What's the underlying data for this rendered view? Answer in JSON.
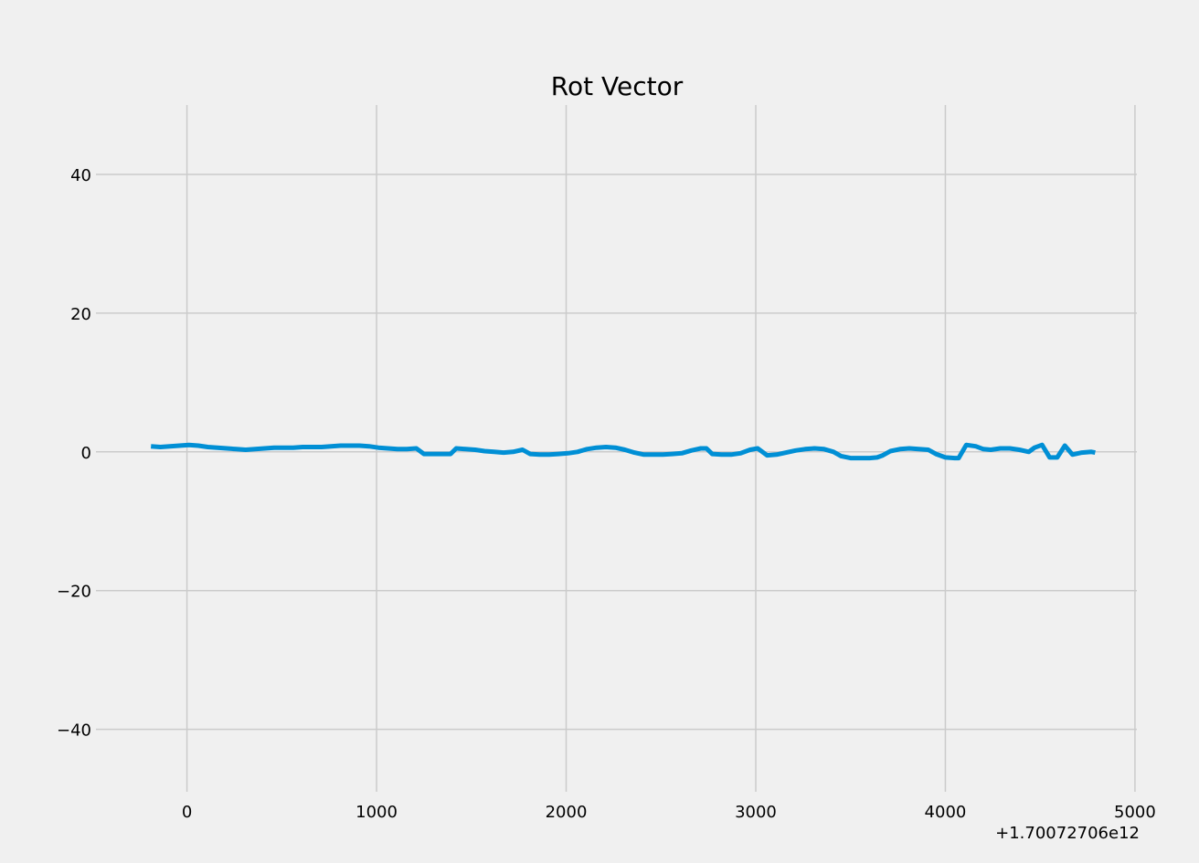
{
  "chart_data": {
    "type": "line",
    "title": "Rot Vector",
    "xlabel": "",
    "ylabel": "",
    "x_offset_label": "+1.70072706e12",
    "xlim": [
      -480,
      5010
    ],
    "ylim": [
      -49,
      50
    ],
    "x_ticks": [
      0,
      1000,
      2000,
      3000,
      4000,
      5000
    ],
    "x_tick_labels": [
      "0",
      "1000",
      "2000",
      "3000",
      "4000",
      "5000"
    ],
    "y_ticks": [
      -40,
      -20,
      0,
      20,
      40
    ],
    "y_tick_labels": [
      "−40",
      "−20",
      "0",
      "20",
      "40"
    ],
    "grid": true,
    "colors": {
      "background": "#f0f0f0",
      "grid": "#cbcbcb",
      "line": "#008fd5"
    },
    "series": [
      {
        "x": [
          -190,
          -140,
          -90,
          -40,
          10,
          60,
          110,
          160,
          210,
          260,
          310,
          360,
          410,
          460,
          510,
          560,
          610,
          660,
          710,
          760,
          810,
          860,
          910,
          960,
          1010,
          1060,
          1110,
          1160,
          1210,
          1250,
          1300,
          1350,
          1390,
          1420,
          1470,
          1520,
          1570,
          1620,
          1670,
          1720,
          1770,
          1810,
          1860,
          1910,
          1960,
          2010,
          2060,
          2110,
          2160,
          2210,
          2260,
          2310,
          2360,
          2410,
          2460,
          2510,
          2560,
          2610,
          2660,
          2710,
          2740,
          2770,
          2820,
          2870,
          2920,
          2970,
          3010,
          3060,
          3110,
          3160,
          3210,
          3260,
          3310,
          3360,
          3410,
          3450,
          3500,
          3550,
          3600,
          3640,
          3670,
          3710,
          3760,
          3810,
          3860,
          3910,
          3950,
          4000,
          4050,
          4070,
          4110,
          4160,
          4200,
          4240,
          4290,
          4340,
          4390,
          4440,
          4470,
          4510,
          4550,
          4590,
          4630,
          4670,
          4720,
          4770,
          4790
        ],
        "y": [
          0.8,
          0.7,
          0.8,
          0.9,
          1.0,
          0.9,
          0.7,
          0.6,
          0.5,
          0.4,
          0.3,
          0.4,
          0.5,
          0.6,
          0.6,
          0.6,
          0.7,
          0.7,
          0.7,
          0.8,
          0.9,
          0.9,
          0.9,
          0.8,
          0.6,
          0.5,
          0.4,
          0.4,
          0.5,
          -0.3,
          -0.3,
          -0.3,
          -0.3,
          0.5,
          0.4,
          0.3,
          0.1,
          0.0,
          -0.1,
          0.0,
          0.3,
          -0.3,
          -0.4,
          -0.4,
          -0.3,
          -0.2,
          0.0,
          0.4,
          0.6,
          0.7,
          0.6,
          0.3,
          -0.1,
          -0.4,
          -0.4,
          -0.4,
          -0.3,
          -0.2,
          0.2,
          0.5,
          0.5,
          -0.3,
          -0.4,
          -0.4,
          -0.2,
          0.3,
          0.5,
          -0.5,
          -0.4,
          -0.1,
          0.2,
          0.4,
          0.5,
          0.4,
          0.0,
          -0.6,
          -0.9,
          -0.9,
          -0.9,
          -0.8,
          -0.5,
          0.1,
          0.4,
          0.5,
          0.4,
          0.3,
          -0.3,
          -0.8,
          -0.9,
          -0.9,
          1.0,
          0.8,
          0.4,
          0.3,
          0.5,
          0.5,
          0.3,
          0.0,
          0.6,
          1.0,
          -0.8,
          -0.8,
          0.9,
          -0.4,
          -0.1,
          0.0,
          -0.1
        ]
      }
    ]
  }
}
